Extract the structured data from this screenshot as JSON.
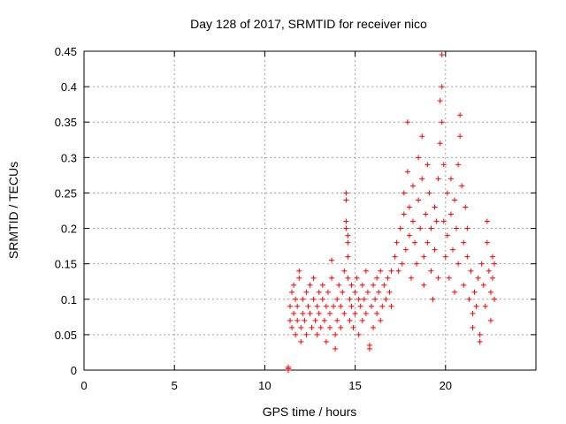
{
  "chart_data": {
    "type": "scatter",
    "title": "Day 128 of 2017, SRMTID for receiver nico",
    "xlabel": "GPS time / hours",
    "ylabel": "SRMTID / TECUs",
    "xlim": [
      0,
      25
    ],
    "ylim": [
      0,
      0.45
    ],
    "xticks": [
      0,
      5,
      10,
      15,
      20
    ],
    "xtick_labels": [
      "0",
      "5",
      "10",
      "15",
      "20"
    ],
    "yticks": [
      0,
      0.05,
      0.1,
      0.15,
      0.2,
      0.25,
      0.3,
      0.35,
      0.4,
      0.45
    ],
    "ytick_labels": [
      "0",
      "0.05",
      "0.1",
      "0.15",
      "0.2",
      "0.25",
      "0.3",
      "0.35",
      "0.4",
      "0.45"
    ],
    "grid": true,
    "marker": "plus",
    "series_color": "#ff0000",
    "series": [
      {
        "name": "SRMTID",
        "points": [
          [
            11.3,
            0.0
          ],
          [
            11.3,
            0.002
          ],
          [
            11.3,
            0.004
          ],
          [
            11.4,
            0.09
          ],
          [
            11.4,
            0.07
          ],
          [
            11.5,
            0.11
          ],
          [
            11.5,
            0.06
          ],
          [
            11.6,
            0.08
          ],
          [
            11.6,
            0.12
          ],
          [
            11.7,
            0.05
          ],
          [
            11.7,
            0.1
          ],
          [
            11.8,
            0.09
          ],
          [
            11.8,
            0.07
          ],
          [
            11.9,
            0.13
          ],
          [
            11.9,
            0.14
          ],
          [
            12.0,
            0.06
          ],
          [
            12.0,
            0.04
          ],
          [
            12.1,
            0.08
          ],
          [
            12.1,
            0.1
          ],
          [
            12.2,
            0.07
          ],
          [
            12.3,
            0.11
          ],
          [
            12.3,
            0.05
          ],
          [
            12.4,
            0.09
          ],
          [
            12.5,
            0.12
          ],
          [
            12.5,
            0.08
          ],
          [
            12.6,
            0.06
          ],
          [
            12.7,
            0.1
          ],
          [
            12.7,
            0.13
          ],
          [
            12.8,
            0.07
          ],
          [
            12.9,
            0.09
          ],
          [
            12.9,
            0.05
          ],
          [
            13.0,
            0.11
          ],
          [
            13.0,
            0.08
          ],
          [
            13.1,
            0.06
          ],
          [
            13.2,
            0.1
          ],
          [
            13.2,
            0.12
          ],
          [
            13.3,
            0.07
          ],
          [
            13.4,
            0.09
          ],
          [
            13.4,
            0.04
          ],
          [
            13.5,
            0.11
          ],
          [
            13.6,
            0.08
          ],
          [
            13.6,
            0.06
          ],
          [
            13.7,
            0.13
          ],
          [
            13.7,
            0.155
          ],
          [
            13.8,
            0.09
          ],
          [
            13.9,
            0.05
          ],
          [
            13.9,
            0.03
          ],
          [
            14.0,
            0.1
          ],
          [
            14.0,
            0.07
          ],
          [
            14.1,
            0.12
          ],
          [
            14.2,
            0.09
          ],
          [
            14.2,
            0.06
          ],
          [
            14.3,
            0.11
          ],
          [
            14.4,
            0.08
          ],
          [
            14.4,
            0.14
          ],
          [
            14.5,
            0.25
          ],
          [
            14.5,
            0.24
          ],
          [
            14.5,
            0.21
          ],
          [
            14.5,
            0.2
          ],
          [
            14.6,
            0.19
          ],
          [
            14.6,
            0.18
          ],
          [
            14.6,
            0.16
          ],
          [
            14.6,
            0.13
          ],
          [
            14.7,
            0.1
          ],
          [
            14.7,
            0.07
          ],
          [
            14.8,
            0.12
          ],
          [
            14.8,
            0.09
          ],
          [
            14.9,
            0.06
          ],
          [
            15.0,
            0.11
          ],
          [
            15.0,
            0.08
          ],
          [
            15.1,
            0.13
          ],
          [
            15.2,
            0.1
          ],
          [
            15.2,
            0.05
          ],
          [
            15.3,
            0.09
          ],
          [
            15.4,
            0.12
          ],
          [
            15.4,
            0.07
          ],
          [
            15.5,
            0.1
          ],
          [
            15.6,
            0.08
          ],
          [
            15.6,
            0.14
          ],
          [
            15.7,
            0.11
          ],
          [
            15.8,
            0.035
          ],
          [
            15.8,
            0.03
          ],
          [
            15.9,
            0.09
          ],
          [
            16.0,
            0.12
          ],
          [
            16.0,
            0.06
          ],
          [
            16.1,
            0.1
          ],
          [
            16.2,
            0.13
          ],
          [
            16.2,
            0.08
          ],
          [
            16.3,
            0.11
          ],
          [
            16.4,
            0.07
          ],
          [
            16.4,
            0.14
          ],
          [
            16.5,
            0.09
          ],
          [
            16.6,
            0.12
          ],
          [
            16.7,
            0.1
          ],
          [
            16.8,
            0.13
          ],
          [
            16.9,
            0.11
          ],
          [
            17.0,
            0.14
          ],
          [
            17.0,
            0.09
          ],
          [
            17.2,
            0.16
          ],
          [
            17.3,
            0.18
          ],
          [
            17.4,
            0.14
          ],
          [
            17.5,
            0.2
          ],
          [
            17.6,
            0.15
          ],
          [
            17.7,
            0.22
          ],
          [
            17.7,
            0.25
          ],
          [
            17.8,
            0.17
          ],
          [
            17.9,
            0.28
          ],
          [
            17.9,
            0.35
          ],
          [
            18.0,
            0.23
          ],
          [
            18.0,
            0.19
          ],
          [
            18.1,
            0.13
          ],
          [
            18.2,
            0.21
          ],
          [
            18.2,
            0.26
          ],
          [
            18.3,
            0.18
          ],
          [
            18.4,
            0.15
          ],
          [
            18.5,
            0.24
          ],
          [
            18.5,
            0.3
          ],
          [
            18.6,
            0.2
          ],
          [
            18.7,
            0.33
          ],
          [
            18.7,
            0.27
          ],
          [
            18.8,
            0.16
          ],
          [
            18.8,
            0.12
          ],
          [
            18.9,
            0.22
          ],
          [
            19.0,
            0.29
          ],
          [
            19.0,
            0.18
          ],
          [
            19.1,
            0.25
          ],
          [
            19.2,
            0.14
          ],
          [
            19.2,
            0.2
          ],
          [
            19.3,
            0.1
          ],
          [
            19.4,
            0.23
          ],
          [
            19.4,
            0.17
          ],
          [
            19.5,
            0.21
          ],
          [
            19.6,
            0.27
          ],
          [
            19.6,
            0.13
          ],
          [
            19.7,
            0.32
          ],
          [
            19.7,
            0.38
          ],
          [
            19.8,
            0.4
          ],
          [
            19.8,
            0.445
          ],
          [
            19.8,
            0.35
          ],
          [
            19.9,
            0.29
          ],
          [
            19.9,
            0.21
          ],
          [
            20.0,
            0.16
          ],
          [
            20.1,
            0.25
          ],
          [
            20.1,
            0.19
          ],
          [
            20.2,
            0.13
          ],
          [
            20.3,
            0.22
          ],
          [
            20.3,
            0.27
          ],
          [
            20.4,
            0.17
          ],
          [
            20.5,
            0.24
          ],
          [
            20.5,
            0.11
          ],
          [
            20.6,
            0.2
          ],
          [
            20.7,
            0.29
          ],
          [
            20.7,
            0.15
          ],
          [
            20.8,
            0.36
          ],
          [
            20.8,
            0.33
          ],
          [
            20.9,
            0.26
          ],
          [
            21.0,
            0.18
          ],
          [
            21.0,
            0.12
          ],
          [
            21.1,
            0.23
          ],
          [
            21.2,
            0.16
          ],
          [
            21.2,
            0.2
          ],
          [
            21.3,
            0.1
          ],
          [
            21.4,
            0.14
          ],
          [
            21.5,
            0.08
          ],
          [
            21.5,
            0.06
          ],
          [
            21.6,
            0.11
          ],
          [
            21.7,
            0.09
          ],
          [
            21.8,
            0.13
          ],
          [
            21.9,
            0.05
          ],
          [
            21.9,
            0.04
          ],
          [
            22.0,
            0.15
          ],
          [
            22.1,
            0.12
          ],
          [
            22.2,
            0.09
          ],
          [
            22.3,
            0.18
          ],
          [
            22.3,
            0.21
          ],
          [
            22.4,
            0.14
          ],
          [
            22.5,
            0.11
          ],
          [
            22.5,
            0.07
          ],
          [
            22.6,
            0.16
          ],
          [
            22.6,
            0.13
          ],
          [
            22.7,
            0.1
          ],
          [
            22.7,
            0.15
          ]
        ]
      }
    ]
  }
}
